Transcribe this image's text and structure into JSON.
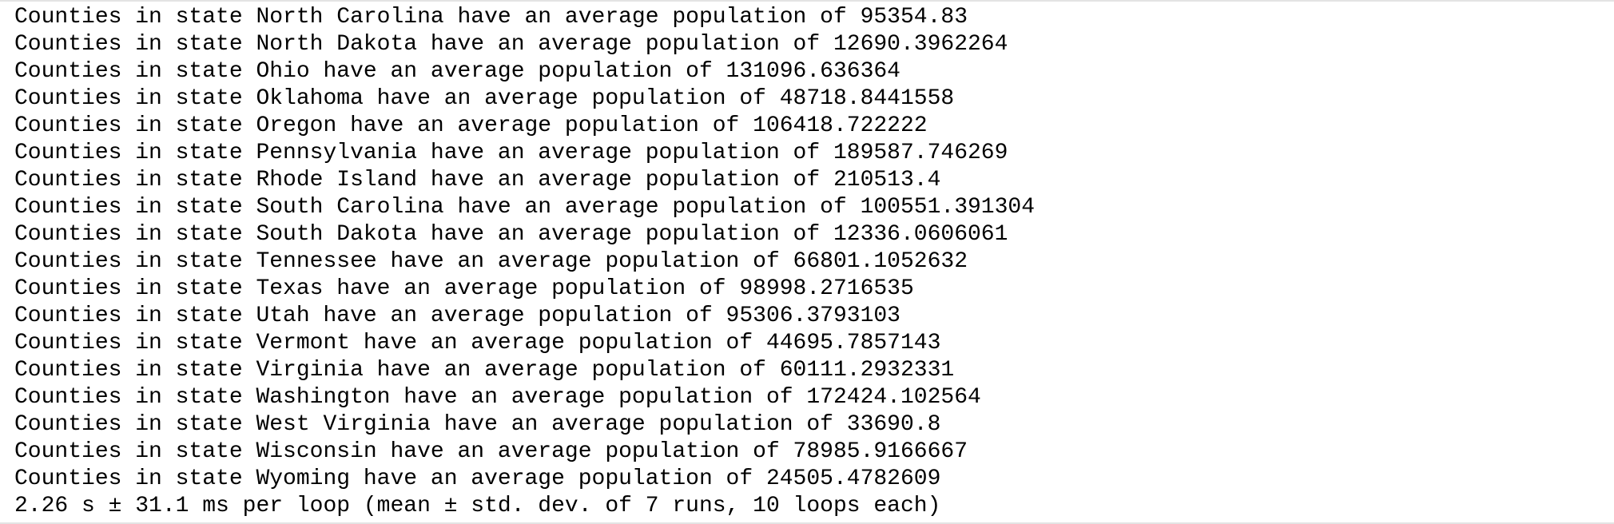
{
  "output": {
    "lines": [
      "Counties in state North Carolina have an average population of 95354.83",
      "Counties in state North Dakota have an average population of 12690.3962264",
      "Counties in state Ohio have an average population of 131096.636364",
      "Counties in state Oklahoma have an average population of 48718.8441558",
      "Counties in state Oregon have an average population of 106418.722222",
      "Counties in state Pennsylvania have an average population of 189587.746269",
      "Counties in state Rhode Island have an average population of 210513.4",
      "Counties in state South Carolina have an average population of 100551.391304",
      "Counties in state South Dakota have an average population of 12336.0606061",
      "Counties in state Tennessee have an average population of 66801.1052632",
      "Counties in state Texas have an average population of 98998.2716535",
      "Counties in state Utah have an average population of 95306.3793103",
      "Counties in state Vermont have an average population of 44695.7857143",
      "Counties in state Virginia have an average population of 60111.2932331",
      "Counties in state Washington have an average population of 172424.102564",
      "Counties in state West Virginia have an average population of 33690.8",
      "Counties in state Wisconsin have an average population of 78985.9166667",
      "Counties in state Wyoming have an average population of 24505.4782609"
    ],
    "timing": "2.26 s ± 31.1 ms per loop (mean ± std. dev. of 7 runs, 10 loops each)"
  },
  "colors": {
    "text": "#000000",
    "background": "#ffffff",
    "border": "#e3e3e3"
  }
}
